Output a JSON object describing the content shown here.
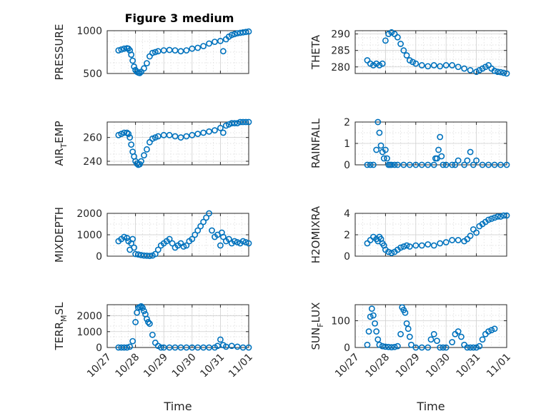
{
  "figure": {
    "title": "Figure 3 medium",
    "marker_color": "#0072BD",
    "x_ticks": [
      "10/27",
      "10/28",
      "10/29",
      "10/30",
      "10/31",
      "11/01"
    ],
    "x_label": "Time"
  },
  "chart_data": [
    {
      "type": "scatter",
      "id": "pressure",
      "ylabel": "PRESSURE",
      "ylabel_sub": null,
      "ylim": [
        500,
        1000
      ],
      "yticks": [
        500,
        1000
      ],
      "minor_rows": 4,
      "xlim": [
        0,
        5
      ],
      "series": [
        {
          "x": [
            0.4,
            0.5,
            0.6,
            0.7,
            0.75,
            0.8,
            0.85,
            0.9,
            0.95,
            1.0,
            1.05,
            1.1,
            1.15,
            1.2,
            1.3,
            1.4,
            1.5,
            1.6,
            1.7,
            1.8,
            2.0,
            2.2,
            2.4,
            2.6,
            2.8,
            3.0,
            3.2,
            3.4,
            3.6,
            3.8,
            4.0,
            4.1,
            4.2,
            4.3,
            4.4,
            4.5,
            4.6,
            4.7,
            4.8,
            4.9,
            5.0
          ],
          "y": [
            770,
            780,
            790,
            795,
            790,
            770,
            720,
            650,
            580,
            540,
            520,
            510,
            505,
            520,
            560,
            620,
            700,
            740,
            750,
            760,
            770,
            775,
            770,
            760,
            770,
            790,
            800,
            820,
            850,
            870,
            880,
            760,
            900,
            930,
            950,
            960,
            970,
            975,
            980,
            985,
            990
          ]
        }
      ]
    },
    {
      "type": "scatter",
      "id": "theta",
      "ylabel": "THETA",
      "ylabel_sub": null,
      "ylim": [
        278,
        291
      ],
      "yticks": [
        280,
        285,
        290
      ],
      "minor_rows": 6,
      "xlim": [
        0,
        5
      ],
      "series": [
        {
          "x": [
            0.4,
            0.5,
            0.6,
            0.7,
            0.8,
            0.9,
            1.0,
            1.1,
            1.2,
            1.3,
            1.4,
            1.5,
            1.6,
            1.7,
            1.8,
            1.9,
            2.0,
            2.2,
            2.4,
            2.6,
            2.8,
            3.0,
            3.2,
            3.4,
            3.6,
            3.8,
            4.0,
            4.1,
            4.2,
            4.3,
            4.4,
            4.5,
            4.6,
            4.7,
            4.8,
            4.9,
            5.0
          ],
          "y": [
            282,
            281,
            280.5,
            281,
            280.5,
            281,
            288,
            290,
            290.5,
            290,
            289,
            287,
            285,
            283.5,
            282,
            281.5,
            281,
            280.5,
            280.2,
            280.5,
            280.2,
            280.5,
            280.5,
            280,
            279.5,
            279,
            278.5,
            279,
            279.5,
            280,
            280.5,
            279.5,
            278.8,
            278.5,
            278.4,
            278.2,
            278
          ]
        }
      ]
    },
    {
      "type": "scatter",
      "id": "airtemp",
      "ylabel": "AIR",
      "ylabel_sub": "T",
      "ylabel_rest": "EMP",
      "ylim": [
        237,
        273
      ],
      "yticks": [
        240,
        260
      ],
      "minor_rows": 4,
      "xlim": [
        0,
        5
      ],
      "series": [
        {
          "x": [
            0.4,
            0.5,
            0.6,
            0.7,
            0.75,
            0.8,
            0.85,
            0.9,
            0.95,
            1.0,
            1.05,
            1.1,
            1.15,
            1.2,
            1.3,
            1.4,
            1.5,
            1.6,
            1.7,
            1.8,
            2.0,
            2.2,
            2.4,
            2.6,
            2.8,
            3.0,
            3.2,
            3.4,
            3.6,
            3.8,
            4.0,
            4.1,
            4.2,
            4.3,
            4.4,
            4.5,
            4.6,
            4.7,
            4.8,
            4.9,
            5.0
          ],
          "y": [
            262,
            263,
            264,
            264,
            263,
            260,
            254,
            248,
            244,
            240,
            238,
            237,
            237.5,
            240,
            245,
            250,
            256,
            259,
            260,
            261,
            262,
            262,
            261,
            260,
            261,
            262,
            263,
            264,
            265,
            266,
            268,
            264,
            270,
            271,
            272,
            272,
            272,
            273,
            273,
            273,
            273
          ]
        }
      ]
    },
    {
      "type": "scatter",
      "id": "rainfall",
      "ylabel": "RAINFALL",
      "ylabel_sub": null,
      "ylim": [
        0,
        2
      ],
      "yticks": [
        0,
        1,
        2
      ],
      "minor_rows": 4,
      "xlim": [
        0,
        5
      ],
      "series": [
        {
          "x": [
            0.4,
            0.5,
            0.6,
            0.7,
            0.75,
            0.8,
            0.85,
            0.9,
            0.95,
            1.0,
            1.05,
            1.1,
            1.15,
            1.2,
            1.3,
            1.4,
            1.6,
            1.8,
            2.0,
            2.2,
            2.4,
            2.6,
            2.65,
            2.7,
            2.75,
            2.8,
            2.85,
            2.9,
            3.0,
            3.2,
            3.3,
            3.4,
            3.6,
            3.7,
            3.8,
            3.9,
            4.0,
            4.2,
            4.4,
            4.6,
            4.8,
            5.0
          ],
          "y": [
            0,
            0,
            0,
            0.7,
            2.0,
            1.5,
            0.9,
            0.6,
            0.3,
            0.7,
            0.3,
            0,
            0,
            0,
            0,
            0,
            0,
            0,
            0,
            0,
            0,
            0,
            0.3,
            0.3,
            0.7,
            1.3,
            0.4,
            0,
            0,
            0,
            0,
            0.2,
            0,
            0.2,
            0.6,
            0,
            0.2,
            0,
            0,
            0,
            0,
            0
          ]
        }
      ]
    },
    {
      "type": "scatter",
      "id": "mixdepth",
      "ylabel": "MIXDEPTH",
      "ylabel_sub": null,
      "ylim": [
        0,
        2000
      ],
      "yticks": [
        0,
        1000,
        2000
      ],
      "minor_rows": 4,
      "xlim": [
        0,
        5
      ],
      "series": [
        {
          "x": [
            0.4,
            0.5,
            0.6,
            0.7,
            0.75,
            0.8,
            0.85,
            0.9,
            0.95,
            1.0,
            1.1,
            1.2,
            1.3,
            1.4,
            1.5,
            1.6,
            1.7,
            1.8,
            1.9,
            2.0,
            2.1,
            2.2,
            2.3,
            2.4,
            2.5,
            2.6,
            2.7,
            2.8,
            2.9,
            3.0,
            3.1,
            3.2,
            3.3,
            3.4,
            3.5,
            3.6,
            3.7,
            3.8,
            3.9,
            4.0,
            4.05,
            4.1,
            4.2,
            4.3,
            4.4,
            4.5,
            4.6,
            4.7,
            4.8,
            4.9,
            5.0
          ],
          "y": [
            700,
            800,
            900,
            850,
            700,
            300,
            600,
            800,
            400,
            100,
            80,
            50,
            30,
            20,
            10,
            30,
            100,
            300,
            500,
            600,
            700,
            800,
            600,
            400,
            500,
            600,
            450,
            500,
            700,
            800,
            1000,
            1200,
            1400,
            1600,
            1800,
            2000,
            1200,
            900,
            1000,
            500,
            1100,
            900,
            700,
            800,
            600,
            700,
            650,
            600,
            700,
            650,
            600
          ]
        }
      ]
    },
    {
      "type": "scatter",
      "id": "h2omixra",
      "ylabel": "H2OMIXRA",
      "ylabel_sub": null,
      "ylim": [
        0,
        4
      ],
      "yticks": [
        0,
        2,
        4
      ],
      "minor_rows": 4,
      "xlim": [
        0,
        5
      ],
      "series": [
        {
          "x": [
            0.4,
            0.5,
            0.6,
            0.7,
            0.75,
            0.8,
            0.85,
            0.9,
            0.95,
            1.0,
            1.1,
            1.2,
            1.3,
            1.4,
            1.5,
            1.6,
            1.7,
            1.8,
            2.0,
            2.2,
            2.4,
            2.6,
            2.8,
            3.0,
            3.2,
            3.4,
            3.6,
            3.7,
            3.8,
            3.9,
            4.0,
            4.1,
            4.2,
            4.3,
            4.4,
            4.5,
            4.6,
            4.7,
            4.8,
            4.9,
            5.0
          ],
          "y": [
            1.2,
            1.5,
            1.8,
            1.6,
            1.4,
            1.8,
            1.6,
            1.2,
            1.0,
            0.6,
            0.4,
            0.3,
            0.4,
            0.6,
            0.8,
            0.9,
            1.0,
            0.9,
            1.0,
            1.0,
            1.1,
            1.0,
            1.2,
            1.3,
            1.5,
            1.5,
            1.4,
            1.6,
            1.9,
            2.5,
            2.2,
            2.8,
            3.0,
            3.2,
            3.4,
            3.5,
            3.6,
            3.7,
            3.7,
            3.8,
            3.8
          ]
        }
      ]
    },
    {
      "type": "scatter",
      "id": "terrmsl",
      "ylabel": "TERR",
      "ylabel_sub": "M",
      "ylabel_rest": "SL",
      "ylim": [
        0,
        2700
      ],
      "yticks": [
        0,
        1000,
        2000
      ],
      "minor_rows": 4,
      "xlim": [
        0,
        5
      ],
      "series": [
        {
          "x": [
            0.4,
            0.5,
            0.6,
            0.7,
            0.8,
            0.9,
            1.0,
            1.05,
            1.1,
            1.15,
            1.2,
            1.25,
            1.3,
            1.35,
            1.4,
            1.45,
            1.5,
            1.6,
            1.7,
            1.8,
            1.9,
            2.0,
            2.2,
            2.4,
            2.6,
            2.8,
            3.0,
            3.2,
            3.4,
            3.6,
            3.8,
            3.9,
            4.0,
            4.1,
            4.2,
            4.4,
            4.6,
            4.8,
            5.0
          ],
          "y": [
            0,
            0,
            0,
            0,
            50,
            400,
            1600,
            2200,
            2500,
            2550,
            2600,
            2500,
            2300,
            2100,
            1800,
            1600,
            1500,
            800,
            300,
            100,
            0,
            0,
            0,
            0,
            0,
            0,
            0,
            0,
            0,
            0,
            0,
            100,
            500,
            150,
            50,
            100,
            50,
            0,
            0
          ]
        }
      ]
    },
    {
      "type": "scatter",
      "id": "sunflux",
      "ylabel": "SUN",
      "ylabel_sub": "F",
      "ylabel_rest": "LUX",
      "ylim": [
        0,
        160
      ],
      "yticks": [
        0,
        100
      ],
      "minor_rows": 4,
      "xlim": [
        0,
        5
      ],
      "series": [
        {
          "x": [
            0.4,
            0.45,
            0.5,
            0.55,
            0.6,
            0.65,
            0.7,
            0.75,
            0.8,
            0.9,
            1.0,
            1.1,
            1.2,
            1.3,
            1.4,
            1.5,
            1.55,
            1.6,
            1.65,
            1.7,
            1.75,
            1.8,
            1.85,
            2.0,
            2.2,
            2.4,
            2.5,
            2.6,
            2.7,
            2.8,
            2.9,
            3.0,
            3.2,
            3.3,
            3.4,
            3.5,
            3.6,
            3.7,
            3.8,
            3.9,
            4.0,
            4.1,
            4.2,
            4.3,
            4.4,
            4.5,
            4.6
          ],
          "y": [
            10,
            60,
            115,
            145,
            120,
            90,
            60,
            30,
            10,
            5,
            3,
            2,
            1,
            2,
            5,
            50,
            150,
            140,
            130,
            90,
            70,
            40,
            10,
            0,
            0,
            0,
            30,
            50,
            25,
            0,
            0,
            0,
            20,
            50,
            60,
            40,
            10,
            0,
            0,
            0,
            0,
            5,
            30,
            50,
            60,
            65,
            70
          ]
        }
      ]
    }
  ]
}
